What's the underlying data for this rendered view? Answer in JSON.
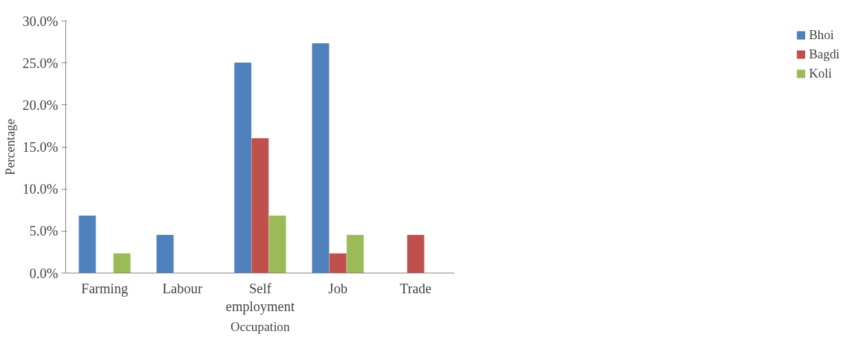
{
  "chart_data": {
    "type": "bar",
    "xlabel": "Occupation",
    "ylabel": "Percentage",
    "categories": [
      "Farming",
      "Labour",
      "Self employment",
      "Job",
      "Trade"
    ],
    "series": [
      {
        "name": "Bhoi",
        "color": "#4f81bd",
        "values": [
          6.8,
          4.5,
          25.0,
          27.3,
          0
        ]
      },
      {
        "name": "Bagdi",
        "color": "#c0504d",
        "values": [
          0,
          0,
          16.0,
          2.3,
          4.5
        ]
      },
      {
        "name": "Koli",
        "color": "#9bbb59",
        "values": [
          2.3,
          0,
          6.8,
          4.5,
          0
        ]
      }
    ],
    "ylim": [
      0,
      30
    ],
    "yticks": [
      {
        "value": 0,
        "label": "0.0%"
      },
      {
        "value": 5,
        "label": "5.0%"
      },
      {
        "value": 10,
        "label": "10.0%"
      },
      {
        "value": 15,
        "label": "15.0%"
      },
      {
        "value": 20,
        "label": "20.0%"
      },
      {
        "value": 25,
        "label": "25.0%"
      },
      {
        "value": 30,
        "label": "30.0%"
      }
    ],
    "grid": false,
    "legend": "right"
  }
}
